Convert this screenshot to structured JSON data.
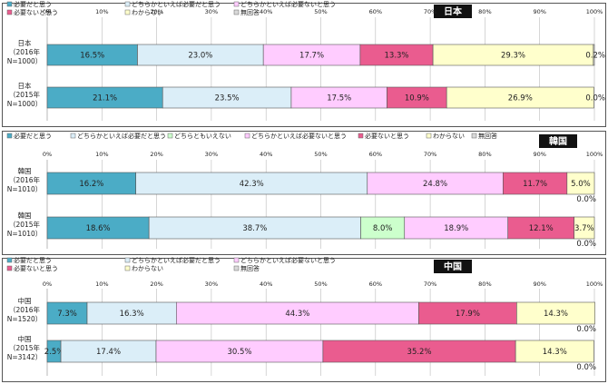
{
  "chart_data": [
    {
      "type": "bar",
      "stacked": true,
      "orientation": "horizontal",
      "title": "日本",
      "legend": [
        "必要だと思う",
        "どちらかといえば必要だと思う",
        "どちらかといえば必要ないと思う",
        "必要ないと思う",
        "わからない",
        "無回答"
      ],
      "colors": [
        "#4bacc6",
        "#dbeef8",
        "#ffccff",
        "#ea5c8f",
        "#ffffcc",
        "#d9d9d9"
      ],
      "xlim": [
        0,
        100
      ],
      "x_ticks": [
        "0%",
        "10%",
        "20%",
        "30%",
        "40%",
        "50%",
        "60%",
        "70%",
        "80%",
        "90%",
        "100%"
      ],
      "categories": [
        {
          "name": "日本",
          "sub1": "（2016年",
          "sub2": "N=1000）"
        },
        {
          "name": "日本",
          "sub1": "（2015年",
          "sub2": "N=1000）"
        }
      ],
      "values": [
        [
          16.5,
          23.0,
          17.7,
          13.3,
          29.3,
          0.2
        ],
        [
          21.1,
          23.5,
          17.5,
          10.9,
          26.9,
          0.0
        ]
      ],
      "labels": [
        [
          "16.5%",
          "23.0%",
          "17.7%",
          "13.3%",
          "29.3%",
          "0.2%"
        ],
        [
          "21.1%",
          "23.5%",
          "17.5%",
          "10.9%",
          "26.9%",
          "0.0%"
        ]
      ]
    },
    {
      "type": "bar",
      "stacked": true,
      "orientation": "horizontal",
      "title": "韓国",
      "legend": [
        "必要だと思う",
        "どちらかといえば必要だと思う",
        "どちらともいえない",
        "どちらかといえば必要ないと思う",
        "必要ないと思う",
        "わからない",
        "無回答"
      ],
      "colors": [
        "#4bacc6",
        "#dbeef8",
        "#ccffcc",
        "#ffccff",
        "#ea5c8f",
        "#ffffcc",
        "#d9d9d9"
      ],
      "xlim": [
        0,
        100
      ],
      "x_ticks": [
        "0%",
        "10%",
        "20%",
        "30%",
        "40%",
        "50%",
        "60%",
        "70%",
        "80%",
        "90%",
        "100%"
      ],
      "categories": [
        {
          "name": "韓国",
          "sub1": "（2016年",
          "sub2": "N=1010）"
        },
        {
          "name": "韓国",
          "sub1": "（2015年",
          "sub2": "N=1010）"
        }
      ],
      "values": [
        [
          16.2,
          42.3,
          0.0,
          24.8,
          11.7,
          5.0,
          0.0
        ],
        [
          18.6,
          38.7,
          8.0,
          18.9,
          12.1,
          3.7,
          0.0
        ]
      ],
      "labels": [
        [
          "16.2%",
          "42.3%",
          "",
          "24.8%",
          "11.7%",
          "5.0%",
          "0.0%"
        ],
        [
          "18.6%",
          "38.7%",
          "8.0%",
          "18.9%",
          "12.1%",
          "3.7%",
          "0.0%"
        ]
      ]
    },
    {
      "type": "bar",
      "stacked": true,
      "orientation": "horizontal",
      "title": "中国",
      "legend": [
        "必要だと思う",
        "どちらかといえば必要だと思う",
        "どちらかといえば必要ないと思う",
        "必要ないと思う",
        "わからない",
        "無回答"
      ],
      "colors": [
        "#4bacc6",
        "#dbeef8",
        "#ffccff",
        "#ea5c8f",
        "#ffffcc",
        "#d9d9d9"
      ],
      "xlim": [
        0,
        100
      ],
      "x_ticks": [
        "0%",
        "10%",
        "20%",
        "30%",
        "40%",
        "50%",
        "60%",
        "70%",
        "80%",
        "90%",
        "100%"
      ],
      "categories": [
        {
          "name": "中国",
          "sub1": "（2016年",
          "sub2": "N=1520）"
        },
        {
          "name": "中国",
          "sub1": "（2015年",
          "sub2": "N=3142）"
        }
      ],
      "values": [
        [
          7.3,
          16.3,
          44.3,
          17.9,
          14.3,
          0.0
        ],
        [
          2.5,
          17.4,
          30.5,
          35.2,
          14.3,
          0.0
        ]
      ],
      "labels": [
        [
          "7.3%",
          "16.3%",
          "44.3%",
          "17.9%",
          "14.3%",
          "0.0%"
        ],
        [
          "2.5%",
          "17.4%",
          "30.5%",
          "35.2%",
          "14.3%",
          "0.0%"
        ]
      ]
    }
  ]
}
